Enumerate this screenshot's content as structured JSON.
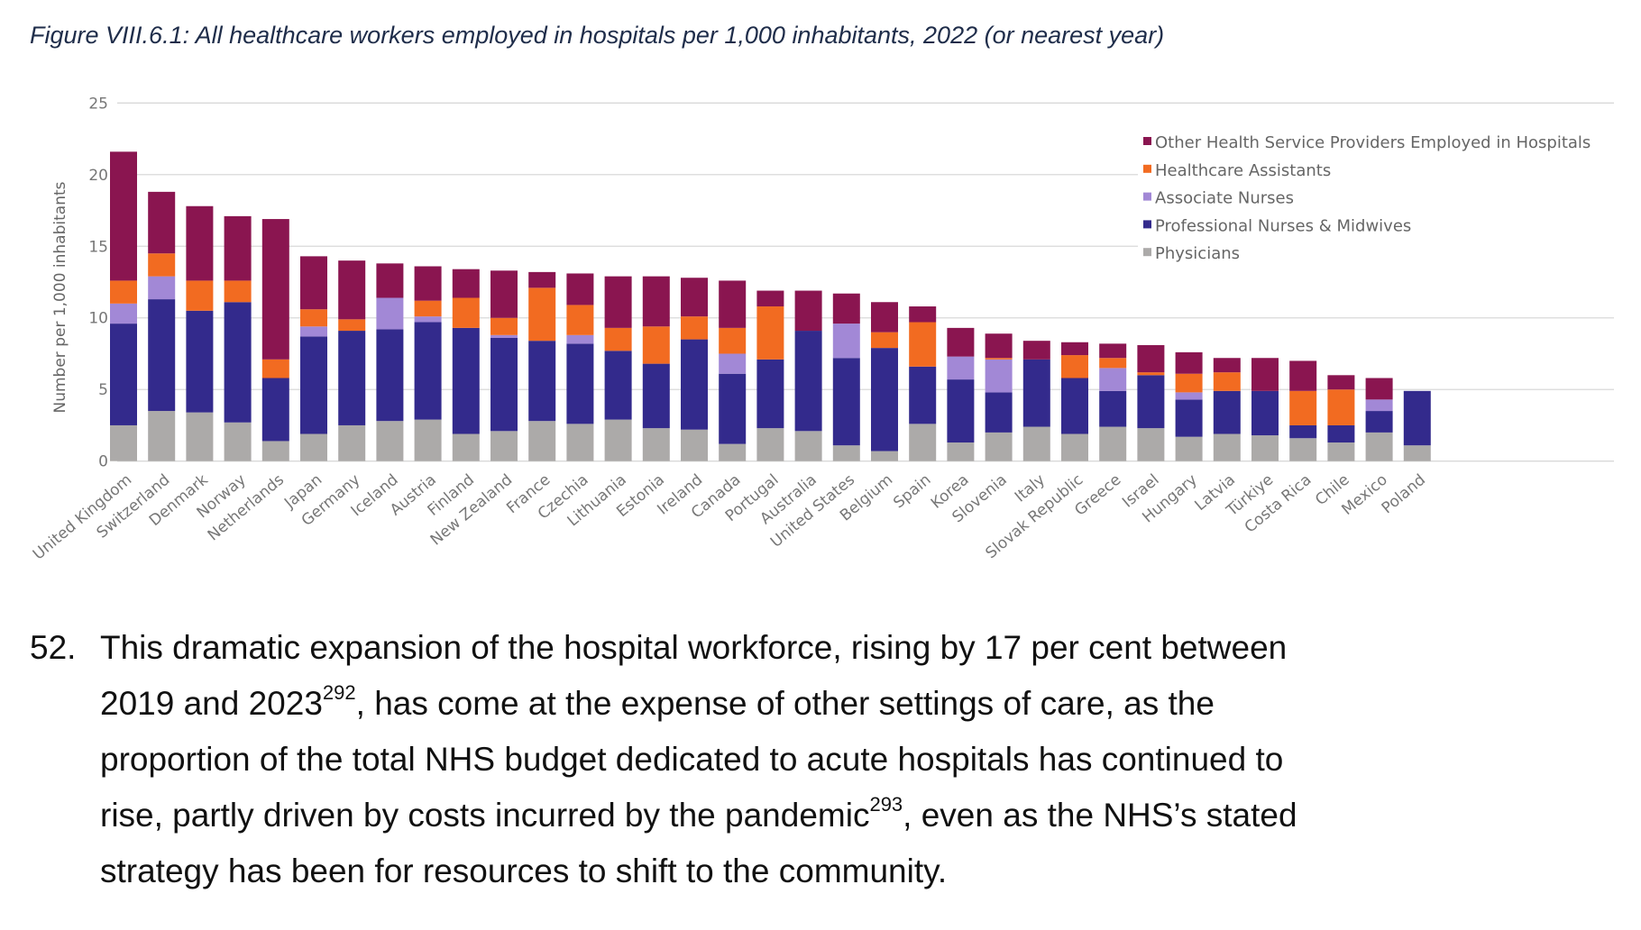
{
  "figure_title": "Figure VIII.6.1: All healthcare workers employed in hospitals per 1,000 inhabitants, 2022 (or nearest year)",
  "chart_data": {
    "type": "bar",
    "stacked": true,
    "title": "Figure VIII.6.1: All healthcare workers employed in hospitals per 1,000 inhabitants, 2022 (or nearest year)",
    "xlabel": "",
    "ylabel": "Number per 1,000 inhabitants",
    "ylim": [
      0,
      25
    ],
    "yticks": [
      "0",
      "5",
      "10",
      "15",
      "20",
      "25"
    ],
    "grid": true,
    "legend_placement": "top-right",
    "categories": [
      "United Kingdom",
      "Switzerland",
      "Denmark",
      "Norway",
      "Netherlands",
      "Japan",
      "Germany",
      "Iceland",
      "Austria",
      "Finland",
      "New Zealand",
      "France",
      "Czechia",
      "Lithuania",
      "Estonia",
      "Ireland",
      "Canada",
      "Portugal",
      "Australia",
      "United States",
      "Belgium",
      "Spain",
      "Korea",
      "Slovenia",
      "Italy",
      "Slovak Republic",
      "Greece",
      "Israel",
      "Hungary",
      "Latvia",
      "Türkiye",
      "Costa Rica",
      "Chile",
      "Mexico",
      "Poland"
    ],
    "series": [
      {
        "name": "Physicians",
        "color": "#acaaa9",
        "values": [
          2.5,
          3.5,
          3.4,
          2.7,
          1.4,
          1.9,
          2.5,
          2.8,
          2.9,
          1.9,
          2.1,
          2.8,
          2.6,
          2.9,
          2.3,
          2.2,
          1.2,
          2.3,
          2.1,
          1.1,
          0.7,
          2.6,
          1.3,
          2.0,
          2.4,
          1.9,
          2.4,
          2.3,
          1.7,
          1.9,
          1.8,
          1.6,
          1.3,
          2.0,
          1.1
        ]
      },
      {
        "name": "Professional Nurses & Midwives",
        "color": "#332a8c",
        "values": [
          7.1,
          7.8,
          7.1,
          8.4,
          4.4,
          6.8,
          6.6,
          6.4,
          6.8,
          7.4,
          6.5,
          5.6,
          5.6,
          4.8,
          4.5,
          6.3,
          4.9,
          4.8,
          7.0,
          6.1,
          7.2,
          4.0,
          4.4,
          2.8,
          4.7,
          3.9,
          2.5,
          3.7,
          2.6,
          3.0,
          3.1,
          0.9,
          1.2,
          1.5,
          3.8
        ]
      },
      {
        "name": "Associate Nurses",
        "color": "#a288d6",
        "values": [
          1.4,
          1.6,
          0,
          0,
          0,
          0.7,
          0,
          2.2,
          0.4,
          0,
          0.2,
          0,
          0.6,
          0,
          0,
          0,
          1.4,
          0,
          0,
          2.4,
          0,
          0,
          1.6,
          2.3,
          0,
          0,
          1.6,
          0,
          0.5,
          0,
          0,
          0,
          0,
          0.8,
          0
        ]
      },
      {
        "name": "Healthcare Assistants",
        "color": "#f26b21",
        "values": [
          1.6,
          1.6,
          2.1,
          1.5,
          1.3,
          1.2,
          0.8,
          0,
          1.1,
          2.1,
          1.2,
          3.7,
          2.1,
          1.6,
          2.6,
          1.6,
          1.8,
          3.7,
          0,
          0,
          1.1,
          3.1,
          0,
          0.1,
          0,
          1.6,
          0.7,
          0.2,
          1.3,
          1.3,
          0,
          2.4,
          2.5,
          0,
          0
        ]
      },
      {
        "name": "Other Health Service Providers Employed in Hospitals",
        "color": "#8a1550",
        "values": [
          9.0,
          4.3,
          5.2,
          4.5,
          9.8,
          3.7,
          4.1,
          2.4,
          2.4,
          2.0,
          3.3,
          1.1,
          2.2,
          3.6,
          3.5,
          2.7,
          3.3,
          1.1,
          2.8,
          2.1,
          2.1,
          1.1,
          2.0,
          1.7,
          1.3,
          0.9,
          1.0,
          1.9,
          1.5,
          1.0,
          2.3,
          2.1,
          1.0,
          1.5,
          0
        ]
      }
    ]
  },
  "paragraph": {
    "number": "52.",
    "lines": [
      {
        "text": "This dramatic expansion of the hospital workforce, rising by 17 per cent between"
      },
      {
        "text": "2019 and 2023",
        "sup": "292",
        "after": ", has come at the expense of other settings of care, as the"
      },
      {
        "text": "proportion of the total NHS budget dedicated to acute hospitals has continued to"
      },
      {
        "text": "rise, partly driven by costs incurred by the pandemic",
        "sup": "293",
        "after": ", even as the NHS’s stated"
      },
      {
        "text": "strategy has been for resources to shift to the community."
      }
    ]
  }
}
